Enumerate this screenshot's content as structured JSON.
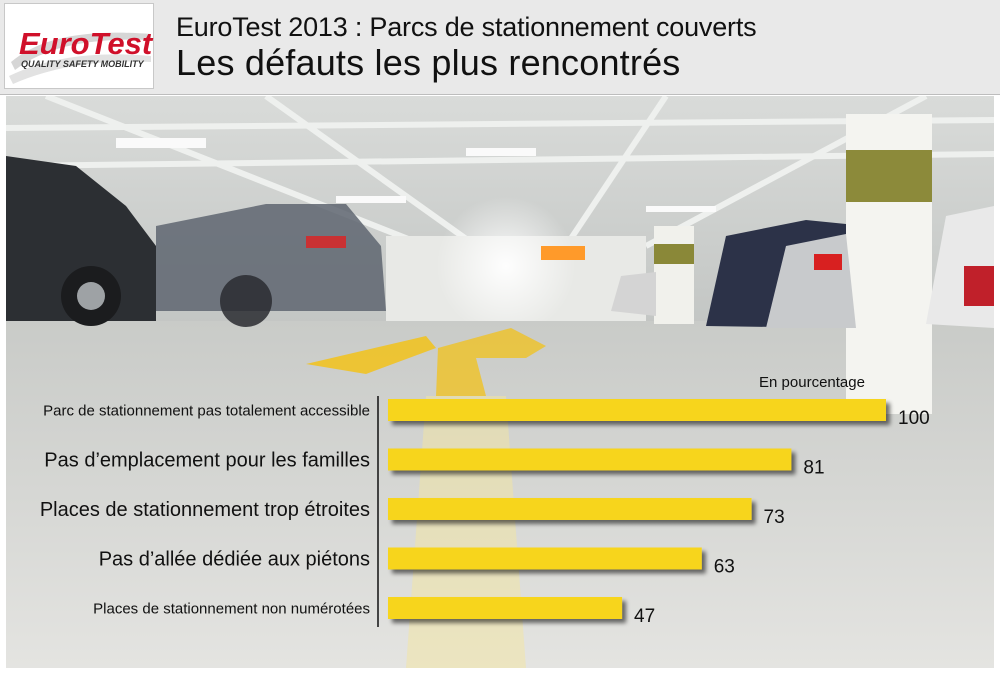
{
  "header": {
    "logo_text": "EuroTest",
    "logo_tagline": "QUALITY SAFETY MOBILITY",
    "title": "EuroTest 2013 : Parcs de stationnement couverts",
    "subtitle": "Les défauts les plus rencontrés"
  },
  "colors": {
    "bar": "#f7d51a",
    "logo_red": "#d0102a",
    "header_bg": "#e9e9e9"
  },
  "chart_data": {
    "type": "bar",
    "orientation": "horizontal",
    "unit_label": "En pourcentage",
    "categories": [
      "Parc de stationnement pas totalement accessible",
      "Pas d’emplacement pour les familles",
      "Places de stationnement trop étroites",
      "Pas d’allée dédiée aux piétons",
      "Places de stationnement non numérotées"
    ],
    "values": [
      100,
      81,
      73,
      63,
      47
    ],
    "data_labels": [
      "100",
      "81",
      "73",
      "63",
      "47"
    ],
    "xlim": [
      0,
      100
    ],
    "grid": false,
    "legend": "none"
  }
}
